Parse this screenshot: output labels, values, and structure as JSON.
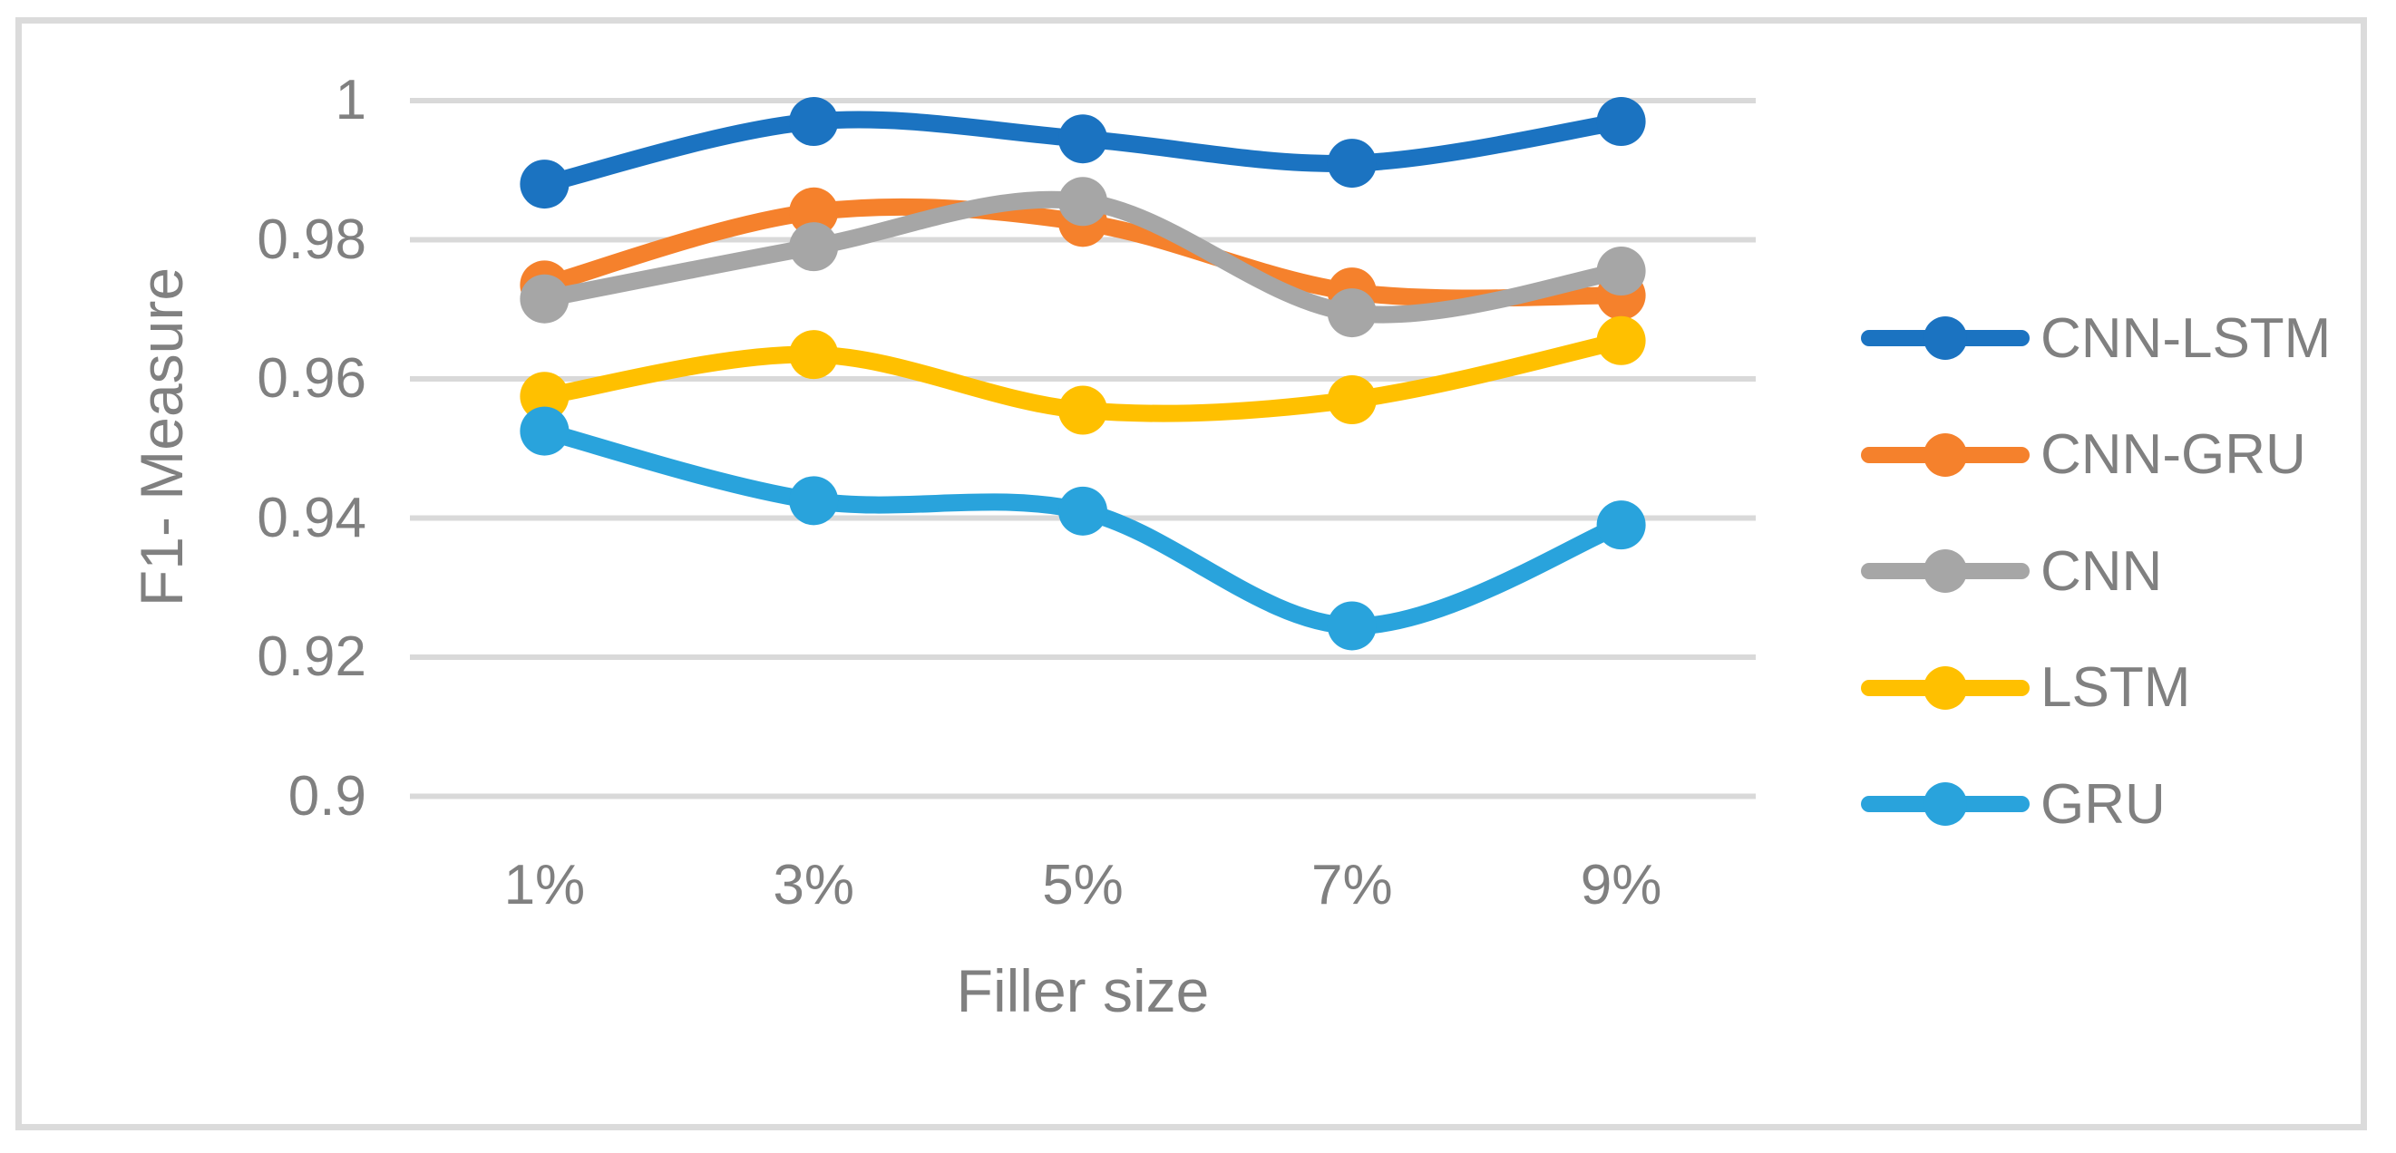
{
  "chart_data": {
    "type": "line",
    "title": "",
    "categories": [
      "1%",
      "3%",
      "5%",
      "7%",
      "9%"
    ],
    "series": [
      {
        "name": "CNN-LSTM",
        "color": "#1B73C1",
        "values": [
          0.988,
          0.997,
          0.9945,
          0.991,
          0.997
        ]
      },
      {
        "name": "CNN-GRU",
        "color": "#F5812C",
        "values": [
          0.9735,
          0.984,
          0.9825,
          0.9725,
          0.972
        ]
      },
      {
        "name": "CNN",
        "color": "#A6A6A6",
        "values": [
          0.9715,
          0.979,
          0.9855,
          0.9695,
          0.9755
        ]
      },
      {
        "name": "LSTM",
        "color": "#FFC000",
        "values": [
          0.9575,
          0.9635,
          0.9555,
          0.957,
          0.9655
        ]
      },
      {
        "name": "GRU",
        "color": "#29A3DC",
        "values": [
          0.9525,
          0.9425,
          0.941,
          0.9245,
          0.939
        ]
      }
    ],
    "xlabel": "Filler size",
    "ylabel": "F1- Measure",
    "ylim": [
      0.9,
      1.0
    ],
    "yticks": [
      1,
      0.98,
      0.96,
      0.94,
      0.92,
      0.9
    ],
    "ytick_labels": [
      "1",
      "0.98",
      "0.96",
      "0.94",
      "0.92",
      "0.9"
    ],
    "grid": true,
    "smooth": true,
    "legend_position": "right",
    "colors": {
      "gridline": "#D9D9D9",
      "text": "#808080",
      "frame_border": "#DBDBDB",
      "background": "#FFFFFF"
    }
  }
}
